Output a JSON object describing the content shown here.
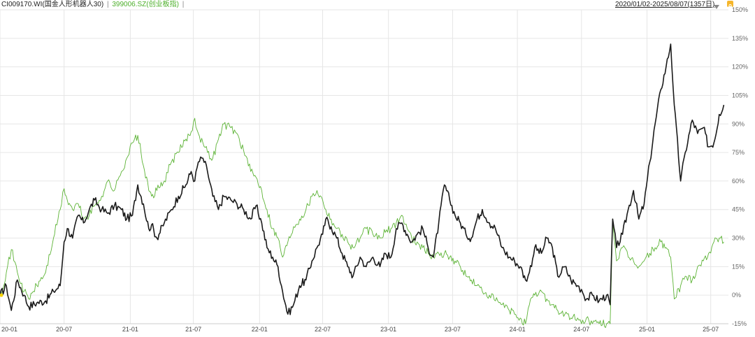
{
  "legend": {
    "series1_label": "CI009170.WI(国金人形机器人30)",
    "separator": "|",
    "series2_label": "399006.SZ(创业板指)",
    "separator2": "|"
  },
  "range_label": "2020/01/02-2025/08/07(1357日)",
  "icons": {
    "dropdown": "caret-down-icon",
    "lock": "lock-icon"
  },
  "colors": {
    "series1": "#1a1a1a",
    "series2": "#5cb335",
    "grid": "#e6e6e6",
    "axis_text": "#666666"
  },
  "chart_data": {
    "type": "line",
    "y_ticks": [
      "150%",
      "135%",
      "120%",
      "105%",
      "90%",
      "75%",
      "60%",
      "45%",
      "30%",
      "15%",
      "0%",
      "-15%"
    ],
    "x_ticks": [
      "20-01",
      "20-07",
      "21-01",
      "21-07",
      "22-01",
      "22-07",
      "23-01",
      "23-07",
      "24-01",
      "24-07",
      "25-01",
      "25-07"
    ],
    "ylim": [
      -15,
      150
    ],
    "grid": true,
    "series": [
      {
        "name": "CI009170.WI(国金人形机器人30)",
        "x": [
          "2020-01-02",
          "2020-01-20",
          "2020-02-03",
          "2020-02-20",
          "2020-03-10",
          "2020-03-23",
          "2020-04-15",
          "2020-05-10",
          "2020-06-01",
          "2020-06-20",
          "2020-07-01",
          "2020-07-10",
          "2020-07-25",
          "2020-08-10",
          "2020-08-25",
          "2020-09-10",
          "2020-09-25",
          "2020-10-15",
          "2020-11-01",
          "2020-11-20",
          "2020-12-10",
          "2020-12-25",
          "2021-01-10",
          "2021-01-25",
          "2021-02-10",
          "2021-02-25",
          "2021-03-05",
          "2021-03-20",
          "2021-04-10",
          "2021-04-30",
          "2021-05-20",
          "2021-06-10",
          "2021-06-25",
          "2021-07-05",
          "2021-07-15",
          "2021-07-28",
          "2021-08-10",
          "2021-08-25",
          "2021-09-10",
          "2021-09-25",
          "2021-10-15",
          "2021-11-01",
          "2021-11-20",
          "2021-12-10",
          "2021-12-25",
          "2022-01-10",
          "2022-01-25",
          "2022-02-10",
          "2022-02-25",
          "2022-03-10",
          "2022-03-25",
          "2022-04-10",
          "2022-04-27",
          "2022-05-15",
          "2022-06-01",
          "2022-06-15",
          "2022-07-01",
          "2022-07-10",
          "2022-07-25",
          "2022-08-10",
          "2022-08-25",
          "2022-09-10",
          "2022-09-25",
          "2022-10-15",
          "2022-11-01",
          "2022-11-20",
          "2022-12-10",
          "2022-12-25",
          "2023-01-10",
          "2023-01-25",
          "2023-02-10",
          "2023-02-25",
          "2023-03-10",
          "2023-03-25",
          "2023-04-10",
          "2023-04-25",
          "2023-05-10",
          "2023-05-25",
          "2023-06-10",
          "2023-06-25",
          "2023-07-10",
          "2023-07-25",
          "2023-08-10",
          "2023-08-25",
          "2023-09-10",
          "2023-09-25",
          "2023-10-15",
          "2023-11-01",
          "2023-11-20",
          "2023-12-10",
          "2023-12-25",
          "2024-01-10",
          "2024-01-25",
          "2024-02-05",
          "2024-02-20",
          "2024-03-10",
          "2024-03-25",
          "2024-04-10",
          "2024-04-25",
          "2024-05-15",
          "2024-06-01",
          "2024-06-20",
          "2024-07-01",
          "2024-07-15",
          "2024-08-01",
          "2024-08-20",
          "2024-09-10",
          "2024-09-20",
          "2024-09-27",
          "2024-10-08",
          "2024-10-25",
          "2024-11-10",
          "2024-11-25",
          "2024-12-10",
          "2024-12-25",
          "2025-01-10",
          "2025-01-25",
          "2025-02-10",
          "2025-02-25",
          "2025-03-10",
          "2025-03-20",
          "2025-04-07",
          "2025-04-20",
          "2025-05-10",
          "2025-05-25",
          "2025-06-10",
          "2025-06-25",
          "2025-07-10",
          "2025-07-25",
          "2025-08-07"
        ],
        "values": [
          0,
          5,
          -8,
          8,
          0,
          -6,
          -4,
          -3,
          2,
          5,
          28,
          35,
          30,
          42,
          38,
          45,
          50,
          45,
          43,
          47,
          45,
          40,
          42,
          58,
          48,
          35,
          37,
          30,
          38,
          45,
          52,
          58,
          65,
          60,
          70,
          72,
          65,
          52,
          45,
          52,
          50,
          48,
          45,
          40,
          47,
          38,
          25,
          20,
          15,
          2,
          -10,
          -5,
          5,
          8,
          18,
          25,
          32,
          40,
          36,
          30,
          22,
          15,
          10,
          20,
          15,
          20,
          15,
          22,
          20,
          35,
          38,
          32,
          28,
          32,
          35,
          25,
          20,
          38,
          58,
          50,
          42,
          38,
          32,
          30,
          40,
          45,
          38,
          35,
          25,
          20,
          18,
          15,
          8,
          12,
          25,
          22,
          30,
          25,
          10,
          15,
          8,
          5,
          3,
          -2,
          0,
          -3,
          0,
          -5,
          40,
          25,
          32,
          45,
          55,
          40,
          48,
          70,
          90,
          108,
          120,
          132,
          100,
          60,
          75,
          92,
          85,
          88,
          78,
          80,
          95,
          100
        ]
      },
      {
        "name": "399006.SZ(创业板指)",
        "x": [
          "2020-01-02",
          "2020-01-20",
          "2020-02-03",
          "2020-02-20",
          "2020-03-10",
          "2020-03-23",
          "2020-04-15",
          "2020-05-10",
          "2020-06-01",
          "2020-06-20",
          "2020-07-01",
          "2020-07-10",
          "2020-07-25",
          "2020-08-10",
          "2020-08-25",
          "2020-09-10",
          "2020-09-25",
          "2020-10-15",
          "2020-11-01",
          "2020-11-20",
          "2020-12-10",
          "2020-12-25",
          "2021-01-10",
          "2021-01-25",
          "2021-02-10",
          "2021-02-25",
          "2021-03-05",
          "2021-03-20",
          "2021-04-10",
          "2021-04-30",
          "2021-05-20",
          "2021-06-10",
          "2021-06-25",
          "2021-07-05",
          "2021-07-15",
          "2021-07-28",
          "2021-08-10",
          "2021-08-25",
          "2021-09-10",
          "2021-09-25",
          "2021-10-15",
          "2021-11-01",
          "2021-11-20",
          "2021-12-10",
          "2021-12-25",
          "2022-01-10",
          "2022-01-25",
          "2022-02-10",
          "2022-02-25",
          "2022-03-10",
          "2022-03-25",
          "2022-04-10",
          "2022-04-27",
          "2022-05-15",
          "2022-06-01",
          "2022-06-15",
          "2022-07-01",
          "2022-07-10",
          "2022-07-25",
          "2022-08-10",
          "2022-08-25",
          "2022-09-10",
          "2022-09-25",
          "2022-10-15",
          "2022-11-01",
          "2022-11-20",
          "2022-12-10",
          "2022-12-25",
          "2023-01-10",
          "2023-01-25",
          "2023-02-10",
          "2023-02-25",
          "2023-03-10",
          "2023-03-25",
          "2023-04-10",
          "2023-04-25",
          "2023-05-10",
          "2023-05-25",
          "2023-06-10",
          "2023-06-25",
          "2023-07-10",
          "2023-07-25",
          "2023-08-10",
          "2023-08-25",
          "2023-09-10",
          "2023-09-25",
          "2023-10-15",
          "2023-11-01",
          "2023-11-20",
          "2023-12-10",
          "2023-12-25",
          "2024-01-10",
          "2024-01-25",
          "2024-02-05",
          "2024-02-20",
          "2024-03-10",
          "2024-03-25",
          "2024-04-10",
          "2024-04-25",
          "2024-05-15",
          "2024-06-01",
          "2024-06-20",
          "2024-07-01",
          "2024-07-15",
          "2024-08-01",
          "2024-08-20",
          "2024-09-10",
          "2024-09-20",
          "2024-09-27",
          "2024-10-08",
          "2024-10-25",
          "2024-11-10",
          "2024-11-25",
          "2024-12-10",
          "2024-12-25",
          "2025-01-10",
          "2025-01-25",
          "2025-02-10",
          "2025-02-25",
          "2025-03-10",
          "2025-03-20",
          "2025-04-07",
          "2025-04-20",
          "2025-05-10",
          "2025-05-25",
          "2025-06-10",
          "2025-06-25",
          "2025-07-10",
          "2025-07-25",
          "2025-08-07"
        ],
        "values": [
          0,
          12,
          24,
          12,
          2,
          -2,
          5,
          12,
          30,
          45,
          56,
          50,
          45,
          48,
          40,
          42,
          47,
          52,
          60,
          55,
          65,
          72,
          80,
          84,
          68,
          55,
          52,
          55,
          60,
          70,
          75,
          82,
          86,
          93,
          85,
          80,
          75,
          72,
          82,
          90,
          88,
          85,
          76,
          65,
          62,
          55,
          45,
          35,
          30,
          20,
          28,
          36,
          40,
          45,
          52,
          55,
          50,
          45,
          40,
          35,
          32,
          28,
          25,
          30,
          35,
          32,
          30,
          33,
          35,
          38,
          42,
          35,
          30,
          28,
          25,
          22,
          20,
          22,
          22,
          20,
          18,
          15,
          10,
          8,
          5,
          2,
          0,
          -3,
          -5,
          -8,
          -10,
          -12,
          -15,
          -5,
          0,
          2,
          -2,
          -5,
          -8,
          -10,
          -12,
          -12,
          -15,
          -12,
          -15,
          -15,
          -15,
          -15,
          40,
          18,
          25,
          20,
          18,
          15,
          18,
          22,
          25,
          28,
          25,
          20,
          -2,
          5,
          10,
          8,
          15,
          18,
          22,
          28,
          30,
          28
        ]
      }
    ]
  }
}
